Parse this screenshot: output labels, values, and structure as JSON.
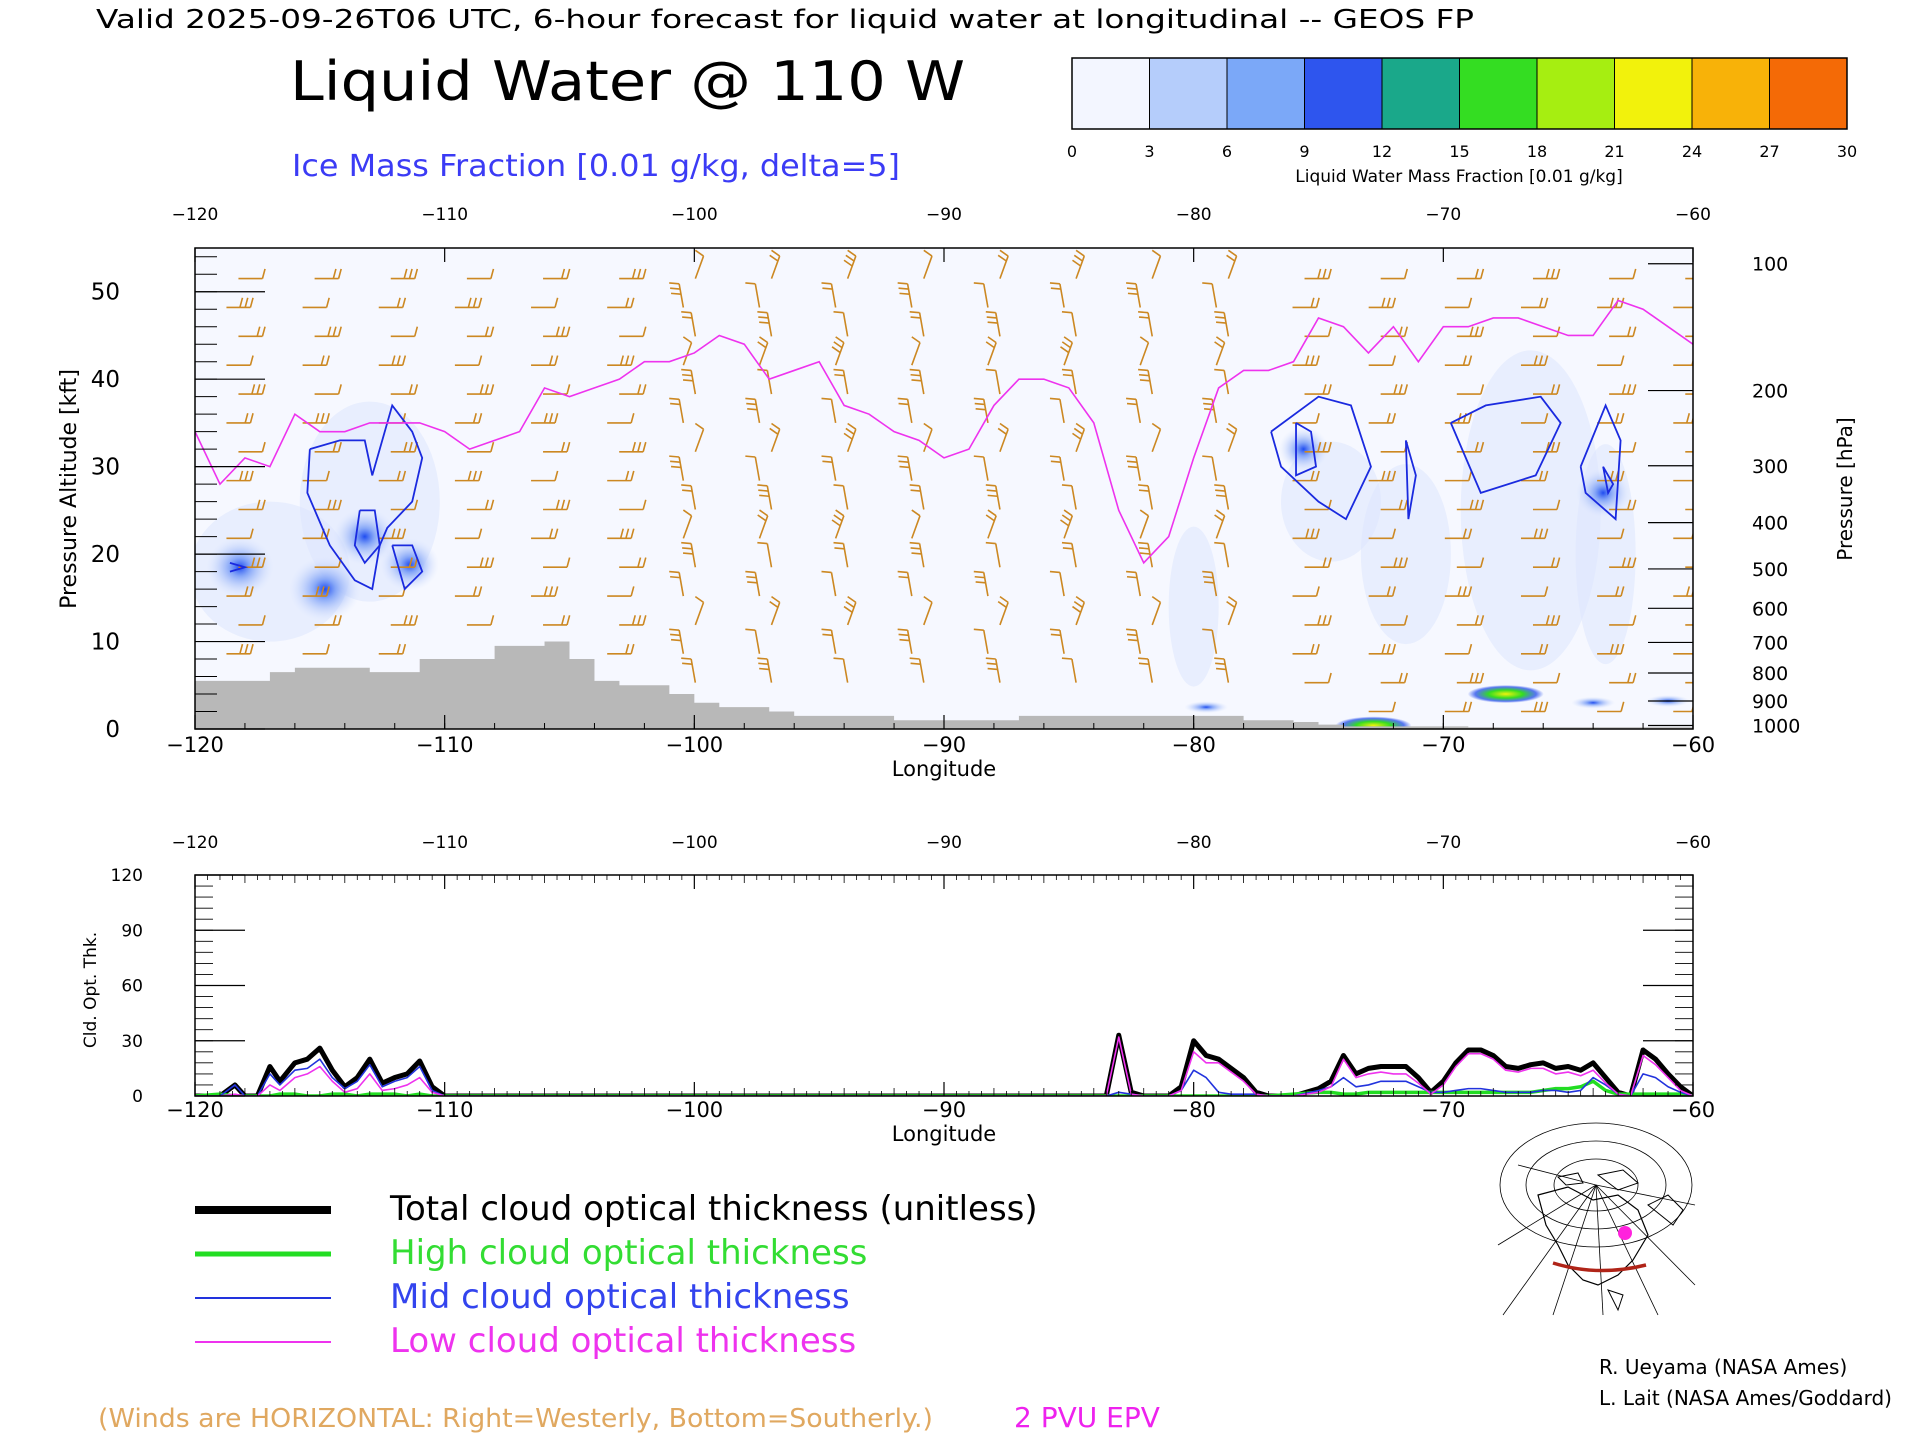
{
  "header": {
    "valid_line": "Valid 2025-09-26T06 UTC, 6-hour forecast for liquid water at longitudinal -- GEOS FP",
    "title": "Liquid Water @ 110 W",
    "subtitle": "Ice Mass Fraction [0.01 g/kg, delta=5]"
  },
  "colorbar": {
    "ticks": [
      "0",
      "3",
      "6",
      "9",
      "12",
      "15",
      "18",
      "21",
      "24",
      "27",
      "30"
    ],
    "label": "Liquid Water Mass Fraction [0.01 g/kg]",
    "colors": [
      "#f3f6ff",
      "#b5cdfb",
      "#7ba8f8",
      "#2e55ee",
      "#1aa88a",
      "#34dd22",
      "#a6ee11",
      "#f2f20c",
      "#f8b208",
      "#f46a06"
    ]
  },
  "footer": {
    "winds_note": "(Winds are HORIZONTAL: Right=Westerly, Bottom=Southerly.)",
    "epv_label": "2 PVU EPV",
    "credit1": "R. Ueyama (NASA Ames)",
    "credit2": "L. Lait (NASA Ames/Goddard)"
  },
  "colors": {
    "total": "#000000",
    "high": "#22dd22",
    "mid": "#2233dd",
    "low": "#ee33ee",
    "winds": "#cc8822",
    "ice_contour": "#1a2adf",
    "terrain": "#b8b8b8"
  },
  "chart_data": [
    {
      "type": "heatmap",
      "x_label": "Longitude",
      "y_label": "Pressure Altitude [kft]",
      "y2_label": "Pressure [hPa]",
      "xlim": [
        -120,
        -60
      ],
      "ylim": [
        0,
        55
      ],
      "x_ticks": [
        -120,
        -110,
        -100,
        -90,
        -80,
        -70,
        -60
      ],
      "x_tick_labels": [
        "−120",
        "−110",
        "−100",
        "−90",
        "−80",
        "−70",
        "−60"
      ],
      "y_ticks": [
        0,
        10,
        20,
        30,
        40,
        50
      ],
      "y_tick_labels": [
        "0",
        "10",
        "20",
        "30",
        "40",
        "50"
      ],
      "pressure_ticks": [
        {
          "hpa": 100,
          "label": "100",
          "kft": 53.2
        },
        {
          "hpa": 200,
          "label": "200",
          "kft": 38.7
        },
        {
          "hpa": 300,
          "label": "300",
          "kft": 30.1
        },
        {
          "hpa": 400,
          "label": "400",
          "kft": 23.6
        },
        {
          "hpa": 500,
          "label": "500",
          "kft": 18.3
        },
        {
          "hpa": 600,
          "label": "600",
          "kft": 13.8
        },
        {
          "hpa": 700,
          "label": "700",
          "kft": 9.9
        },
        {
          "hpa": 800,
          "label": "800",
          "kft": 6.4
        },
        {
          "hpa": 900,
          "label": "900",
          "kft": 3.2
        },
        {
          "hpa": 1000,
          "label": "1000",
          "kft": 0.4
        }
      ],
      "epv_2pvu": {
        "lon": [
          -120,
          -119,
          -118,
          -117,
          -116,
          -115,
          -114,
          -113,
          -112,
          -111,
          -110,
          -109,
          -108,
          -107,
          -106,
          -105,
          -104,
          -103,
          -102,
          -101,
          -100,
          -99,
          -98,
          -97,
          -96,
          -95,
          -94,
          -93,
          -92,
          -91,
          -90,
          -89,
          -88,
          -87,
          -86,
          -85,
          -84,
          -83,
          -82,
          -81,
          -80,
          -79,
          -78,
          -77,
          -76,
          -75,
          -74,
          -73,
          -72,
          -71,
          -70,
          -69,
          -68,
          -67,
          -66,
          -65,
          -64,
          -63,
          -62,
          -61,
          -60
        ],
        "kft": [
          34,
          28,
          31,
          30,
          36,
          34,
          34,
          35,
          35,
          35,
          34,
          32,
          33,
          34,
          39,
          38,
          39,
          40,
          42,
          42,
          43,
          45,
          44,
          40,
          41,
          42,
          37,
          36,
          34,
          33,
          31,
          32,
          37,
          40,
          40,
          39,
          35,
          25,
          19,
          22,
          31,
          39,
          41,
          41,
          42,
          47,
          46,
          43,
          46,
          42,
          46,
          46,
          47,
          47,
          46,
          45,
          45,
          49,
          48,
          46,
          44
        ]
      },
      "terrain": {
        "lon": [
          -120,
          -119,
          -118,
          -117,
          -116,
          -115,
          -114,
          -113,
          -112,
          -111,
          -110,
          -109,
          -108,
          -107,
          -106,
          -105,
          -104,
          -103,
          -102,
          -101,
          -100,
          -99,
          -98,
          -97,
          -96,
          -95,
          -94,
          -93,
          -92,
          -91,
          -90,
          -89,
          -88,
          -87,
          -86,
          -85,
          -84,
          -83,
          -82,
          -81,
          -80,
          -79,
          -78,
          -77,
          -76,
          -75,
          -74,
          -73,
          -72,
          -71,
          -70,
          -69,
          -68,
          -67,
          -66,
          -65,
          -64,
          -63,
          -62,
          -61,
          -60
        ],
        "kft": [
          5.5,
          5.5,
          5.5,
          6.5,
          7.0,
          7.0,
          7.0,
          6.5,
          6.5,
          8.0,
          8.0,
          8.0,
          9.5,
          9.5,
          10.0,
          8.0,
          5.5,
          5.0,
          5.0,
          4.0,
          3.0,
          2.5,
          2.5,
          2.0,
          1.5,
          1.5,
          1.5,
          1.5,
          1.0,
          1.0,
          1.0,
          1.0,
          1.0,
          1.5,
          1.5,
          1.5,
          1.5,
          1.5,
          1.5,
          1.5,
          1.5,
          1.5,
          1.0,
          1.0,
          0.8,
          0.5,
          0.3,
          0.3,
          0.3,
          0.3,
          0.3,
          0.2,
          0.2,
          0.2,
          0.2,
          0.2,
          0.2,
          0.2,
          0.2,
          0.2,
          0.2
        ]
      },
      "ice_fraction_blobs": [
        {
          "lon": -118.2,
          "kft": 18.5,
          "value": 9
        },
        {
          "lon": -114.8,
          "kft": 16.0,
          "value": 10
        },
        {
          "lon": -113.2,
          "kft": 22.0,
          "value": 8
        },
        {
          "lon": -111.4,
          "kft": 18.8,
          "value": 7
        },
        {
          "lon": -75.6,
          "kft": 32.0,
          "value": 5
        },
        {
          "lon": -63.6,
          "kft": 27.0,
          "value": 6
        }
      ],
      "ice_contours": [
        {
          "lon": [
            -115.4,
            -114.2,
            -113.2,
            -112.9,
            -112.1,
            -111.3,
            -110.9,
            -111.3,
            -112.3,
            -112.6,
            -112.9,
            -113.6,
            -114.6,
            -115.5,
            -115.4
          ],
          "kft": [
            32,
            33,
            33,
            29,
            37,
            34,
            31,
            26,
            23,
            21,
            16,
            17,
            21,
            27,
            32
          ]
        },
        {
          "lon": [
            -113.4,
            -112.8,
            -112.6,
            -113.2,
            -113.6,
            -113.4
          ],
          "kft": [
            25,
            25,
            21,
            19,
            21,
            25
          ]
        },
        {
          "lon": [
            -112.1,
            -111.3,
            -110.9,
            -111.6,
            -112.1
          ],
          "kft": [
            21,
            21,
            18,
            16,
            21
          ]
        },
        {
          "lon": [
            -118.6,
            -118.0,
            -118.6
          ],
          "kft": [
            19,
            18.5,
            18
          ]
        },
        {
          "lon": [
            -76.9,
            -75.0,
            -73.7,
            -72.9,
            -73.9,
            -75.0,
            -76.5,
            -76.9
          ],
          "kft": [
            34,
            38,
            37,
            30,
            24,
            26,
            30,
            34
          ]
        },
        {
          "lon": [
            -75.9,
            -75.3,
            -75.1,
            -75.9,
            -75.9
          ],
          "kft": [
            35,
            34,
            30,
            29,
            35
          ]
        },
        {
          "lon": [
            -71.5,
            -71.1,
            -71.4,
            -71.5
          ],
          "kft": [
            33,
            29,
            24,
            33
          ]
        },
        {
          "lon": [
            -69.7,
            -68.3,
            -66.1,
            -65.3,
            -66.3,
            -68.5,
            -69.7
          ],
          "kft": [
            35,
            37,
            38,
            35,
            29,
            27,
            35
          ]
        },
        {
          "lon": [
            -64.5,
            -63.5,
            -62.9,
            -63.1,
            -64.3,
            -64.5
          ],
          "kft": [
            30,
            37,
            33,
            24,
            27,
            30
          ]
        },
        {
          "lon": [
            -63.6,
            -63.2,
            -63.4,
            -63.6
          ],
          "kft": [
            30,
            28,
            27,
            30
          ]
        }
      ],
      "liquid_water_patches": [
        {
          "lon": -67.5,
          "kft": 4.0,
          "value": 21
        },
        {
          "lon": -72.8,
          "kft": 0.4,
          "value": 24
        },
        {
          "lon": -79.5,
          "kft": 2.5,
          "value": 8
        },
        {
          "lon": -64.0,
          "kft": 3.0,
          "value": 9
        },
        {
          "lon": -61.0,
          "kft": 3.2,
          "value": 9
        }
      ]
    },
    {
      "type": "line",
      "x_label": "Longitude",
      "y_label": "Cld. Opt. Thk.",
      "xlim": [
        -120,
        -60
      ],
      "ylim": [
        0,
        120
      ],
      "x_ticks": [
        -120,
        -110,
        -100,
        -90,
        -80,
        -70,
        -60
      ],
      "x_tick_labels": [
        "−120",
        "−110",
        "−100",
        "−90",
        "−80",
        "−70",
        "−60"
      ],
      "y_ticks": [
        0,
        30,
        60,
        90,
        120
      ],
      "y_tick_labels": [
        "0",
        "30",
        "60",
        "90",
        "120"
      ],
      "x": [
        -120,
        -119,
        -118.4,
        -118,
        -117.5,
        -117,
        -116.6,
        -116,
        -115.5,
        -115,
        -114.5,
        -114,
        -113.5,
        -113,
        -112.5,
        -112,
        -111.5,
        -111,
        -110.5,
        -110,
        -105,
        -100,
        -95,
        -90,
        -85,
        -84,
        -83.5,
        -83,
        -82.5,
        -82,
        -81,
        -80.5,
        -80,
        -79.5,
        -79,
        -78.5,
        -78,
        -77.5,
        -77,
        -76,
        -75,
        -74.5,
        -74,
        -73.5,
        -73,
        -72.5,
        -72,
        -71.5,
        -71,
        -70.5,
        -70,
        -69.5,
        -69,
        -68.5,
        -68,
        -67.5,
        -67,
        -66.5,
        -66,
        -65.5,
        -65,
        -64.5,
        -64,
        -63.5,
        -63,
        -62.5,
        -62,
        -61.5,
        -61,
        -60.5,
        -60
      ],
      "series": [
        {
          "name": "Total cloud optical thickness (unitless)",
          "values": [
            0,
            0,
            6,
            0,
            0,
            16,
            8,
            18,
            20,
            26,
            14,
            5,
            10,
            20,
            7,
            10,
            12,
            19,
            5,
            0,
            0,
            0,
            0,
            0,
            0,
            0,
            0,
            33,
            2,
            0,
            0,
            5,
            30,
            22,
            20,
            15,
            10,
            2,
            0,
            0,
            4,
            8,
            22,
            12,
            15,
            16,
            16,
            16,
            10,
            2,
            8,
            18,
            25,
            25,
            22,
            16,
            15,
            17,
            18,
            15,
            16,
            14,
            18,
            10,
            2,
            0,
            25,
            20,
            12,
            5,
            0
          ]
        },
        {
          "name": "High cloud optical thickness",
          "values": [
            0,
            1,
            0,
            0,
            0,
            0,
            1,
            1,
            0,
            0,
            1,
            1,
            0,
            1,
            1,
            1,
            0,
            1,
            0,
            0,
            0,
            0,
            0,
            0,
            0,
            0,
            0,
            0,
            0,
            0,
            0,
            0,
            0,
            0,
            0,
            0,
            0,
            0,
            0,
            1,
            2,
            2,
            1,
            1,
            2,
            2,
            2,
            2,
            2,
            2,
            2,
            2,
            2,
            2,
            2,
            2,
            2,
            2,
            3,
            4,
            4,
            5,
            8,
            3,
            1,
            1,
            1,
            1,
            1,
            1,
            0
          ]
        },
        {
          "name": "Mid cloud optical thickness",
          "values": [
            0,
            0,
            6,
            0,
            0,
            12,
            6,
            14,
            15,
            20,
            10,
            4,
            8,
            17,
            5,
            8,
            10,
            16,
            3,
            0,
            0,
            0,
            0,
            0,
            0,
            0,
            0,
            2,
            1,
            0,
            0,
            3,
            14,
            10,
            2,
            1,
            1,
            1,
            0,
            0,
            3,
            5,
            10,
            5,
            6,
            8,
            8,
            8,
            5,
            2,
            2,
            3,
            4,
            4,
            3,
            2,
            2,
            2,
            3,
            3,
            2,
            3,
            10,
            6,
            1,
            0,
            12,
            10,
            5,
            2,
            0
          ]
        },
        {
          "name": "Low cloud optical thickness",
          "values": [
            0,
            0,
            1,
            0,
            0,
            6,
            3,
            10,
            12,
            16,
            8,
            2,
            4,
            12,
            3,
            4,
            6,
            10,
            2,
            0,
            0,
            0,
            0,
            0,
            0,
            0,
            0,
            32,
            1,
            0,
            0,
            3,
            24,
            18,
            18,
            13,
            8,
            1,
            0,
            0,
            2,
            5,
            20,
            10,
            12,
            13,
            12,
            12,
            7,
            1,
            6,
            16,
            23,
            23,
            20,
            14,
            13,
            15,
            15,
            12,
            13,
            11,
            14,
            7,
            1,
            0,
            22,
            17,
            10,
            3,
            0
          ]
        }
      ]
    }
  ]
}
